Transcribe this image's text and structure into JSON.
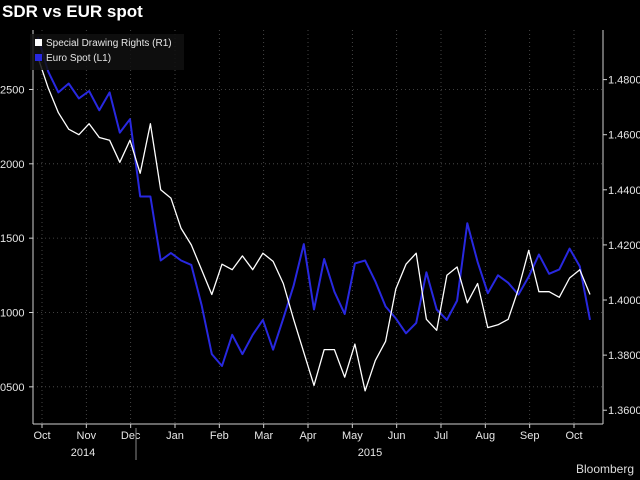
{
  "page": {
    "title": "SDR vs EUR spot",
    "source": "Bloomberg"
  },
  "chart_data": {
    "type": "line",
    "x_labels": [
      "Oct",
      "Nov",
      "Dec",
      "Jan",
      "Feb",
      "Mar",
      "Apr",
      "May",
      "Jun",
      "Jul",
      "Aug",
      "Sep",
      "Oct"
    ],
    "years": [
      "2014",
      "2015"
    ],
    "grid": true,
    "legend_position": "top-left",
    "y_left": {
      "ticks": [
        "0500",
        "1000",
        "1500",
        "2000",
        "2500"
      ],
      "tick_values": [
        1.05,
        1.1,
        1.15,
        1.2,
        1.25
      ],
      "range": [
        1.025,
        1.29
      ]
    },
    "y_right": {
      "ticks": [
        "1.3600",
        "1.3800",
        "1.4000",
        "1.4200",
        "1.4400",
        "1.4600",
        "1.4800"
      ],
      "tick_values": [
        1.36,
        1.38,
        1.4,
        1.42,
        1.44,
        1.46,
        1.48
      ],
      "range": [
        1.355,
        1.498
      ]
    },
    "series": [
      {
        "name": "Special Drawing Rights  (R1)",
        "axis": "right",
        "color": "#ffffff",
        "x": [
          0,
          1,
          2,
          3,
          4,
          5,
          6,
          7,
          8,
          9,
          10,
          11,
          12,
          13,
          14,
          15,
          16,
          17,
          18,
          19,
          20,
          21,
          22,
          23,
          24,
          25,
          26,
          27,
          28,
          29,
          30,
          31,
          32,
          33,
          34,
          35,
          36,
          37,
          38,
          39,
          40,
          41,
          42,
          43,
          44,
          45,
          46,
          47,
          48,
          49,
          50,
          51,
          52,
          53,
          54
        ],
        "values": [
          1.488,
          1.477,
          1.468,
          1.462,
          1.46,
          1.464,
          1.459,
          1.458,
          1.45,
          1.458,
          1.446,
          1.464,
          1.44,
          1.437,
          1.426,
          1.42,
          1.411,
          1.402,
          1.413,
          1.411,
          1.416,
          1.411,
          1.417,
          1.414,
          1.406,
          1.393,
          1.381,
          1.369,
          1.382,
          1.382,
          1.372,
          1.384,
          1.367,
          1.378,
          1.385,
          1.404,
          1.413,
          1.417,
          1.393,
          1.389,
          1.409,
          1.412,
          1.399,
          1.406,
          1.39,
          1.391,
          1.393,
          1.404,
          1.418,
          1.403,
          1.403,
          1.401,
          1.408,
          1.411,
          1.402
        ]
      },
      {
        "name": "Euro Spot  (L1)",
        "axis": "left",
        "color": "#2828e0",
        "x": [
          0,
          1,
          2,
          3,
          4,
          5,
          6,
          7,
          8,
          9,
          10,
          11,
          12,
          13,
          14,
          15,
          16,
          17,
          18,
          19,
          20,
          21,
          22,
          23,
          24,
          25,
          26,
          27,
          28,
          29,
          30,
          31,
          32,
          33,
          34,
          35,
          36,
          37,
          38,
          39,
          40,
          41,
          42,
          43,
          44,
          45,
          46,
          47,
          48,
          49,
          50,
          51,
          52,
          53,
          54
        ],
        "values": [
          1.285,
          1.262,
          1.248,
          1.254,
          1.244,
          1.249,
          1.236,
          1.248,
          1.221,
          1.23,
          1.178,
          1.178,
          1.135,
          1.14,
          1.135,
          1.132,
          1.105,
          1.072,
          1.064,
          1.085,
          1.072,
          1.085,
          1.095,
          1.075,
          1.096,
          1.118,
          1.146,
          1.102,
          1.136,
          1.114,
          1.099,
          1.133,
          1.135,
          1.121,
          1.104,
          1.096,
          1.086,
          1.093,
          1.127,
          1.102,
          1.095,
          1.108,
          1.16,
          1.134,
          1.113,
          1.125,
          1.12,
          1.112,
          1.124,
          1.139,
          1.126,
          1.129,
          1.143,
          1.131,
          1.095
        ]
      }
    ]
  }
}
